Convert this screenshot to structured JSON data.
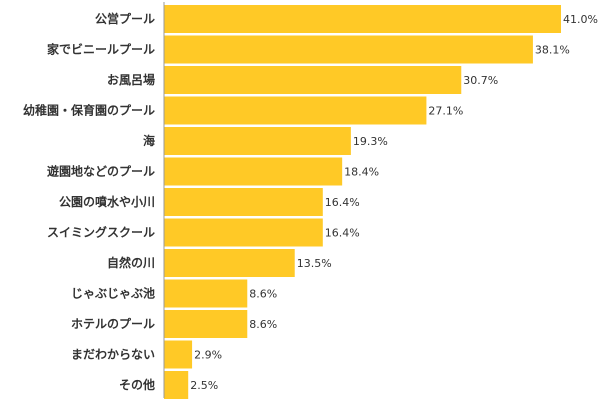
{
  "chart_data": {
    "type": "bar",
    "orientation": "horizontal",
    "categories": [
      "公営プール",
      "家でビニールプール",
      "お風呂場",
      "幼稚園・保育園のプール",
      "海",
      "遊園地などのプール",
      "公園の噴水や小川",
      "スイミングスクール",
      "自然の川",
      "じゃぶじゃぶ池",
      "ホテルのプール",
      "まだわからない",
      "その他"
    ],
    "values": [
      41.0,
      38.1,
      30.7,
      27.1,
      19.3,
      18.4,
      16.4,
      16.4,
      13.5,
      8.6,
      8.6,
      2.9,
      2.5
    ],
    "value_labels": [
      "41.0%",
      "38.1%",
      "30.7%",
      "27.1%",
      "19.3%",
      "18.4%",
      "16.4%",
      "16.4%",
      "13.5%",
      "8.6%",
      "8.6%",
      "2.9%",
      "2.5%"
    ],
    "xlim": [
      0,
      41.0
    ],
    "bar_color": "#FFC926",
    "axis_color": "#999999",
    "grid": false,
    "title": "",
    "xlabel": "",
    "ylabel": ""
  }
}
